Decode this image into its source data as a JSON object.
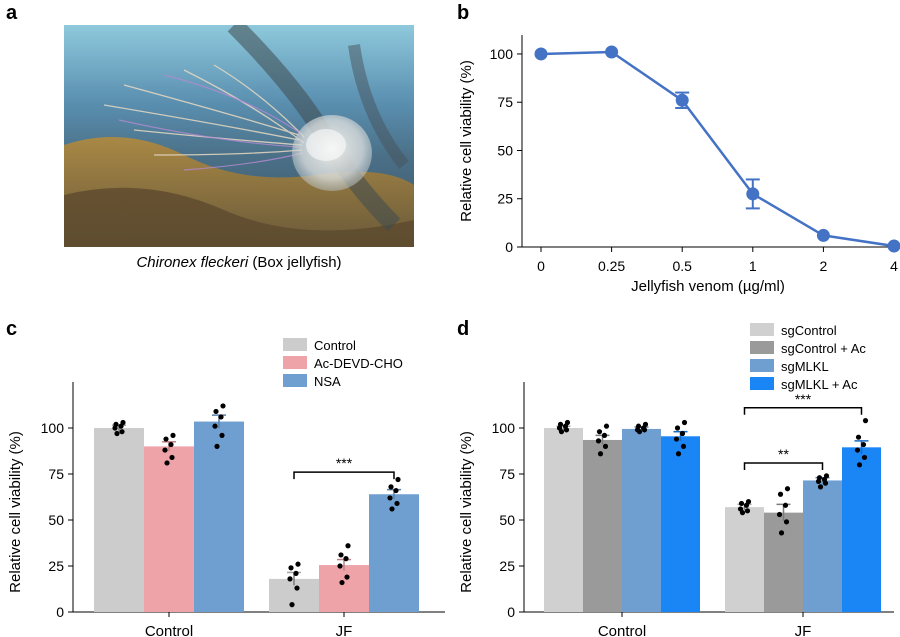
{
  "panel_labels": {
    "a": "a",
    "b": "b",
    "c": "c",
    "d": "d"
  },
  "panel_a": {
    "caption_species": "Chironex fleckeri",
    "caption_common": " (Box jellyfish)"
  },
  "colors": {
    "line_blue": "#4472c4",
    "control_gray": "#cccccc",
    "acdevd_pink": "#eda3a8",
    "nsa_blue": "#6e9fd0",
    "sgcontrol_light": "#d0d0d0",
    "sgcontrol_ac": "#9a9a9a",
    "sgmlkl": "#6e9fd0",
    "sgmlkl_ac": "#1a85f5"
  },
  "chart_data": [
    {
      "id": "b",
      "type": "line",
      "xlabel": "Jellyfish venom (µg/ml)",
      "ylabel": "Relative cell viability (%)",
      "x": [
        "0",
        "0.25",
        "0.5",
        "1",
        "2",
        "4"
      ],
      "values": [
        100,
        101,
        76,
        27.5,
        6,
        0.5
      ],
      "errors": [
        0,
        0,
        4,
        7.5,
        0,
        0
      ],
      "ylim": [
        0,
        115
      ],
      "yticks": [
        "0",
        "25",
        "50",
        "75",
        "100"
      ]
    },
    {
      "id": "c",
      "type": "bar",
      "ylabel": "Relative cell viability (%)",
      "categories": [
        "Control",
        "JF"
      ],
      "ylim": [
        0,
        125
      ],
      "yticks": [
        "0",
        "25",
        "50",
        "75",
        "100"
      ],
      "series": [
        {
          "name": "Control",
          "values": [
            100,
            18
          ],
          "errors": [
            1.5,
            3.5
          ],
          "points": [
            [
              97,
              98,
              100,
              101,
              102,
              103
            ],
            [
              4,
              13,
              18,
              21,
              24,
              26
            ]
          ]
        },
        {
          "name": "Ac-DEVD-CHO",
          "values": [
            90,
            25.5
          ],
          "errors": [
            2.5,
            3
          ],
          "points": [
            [
              81,
              84,
              88,
              91,
              94,
              96
            ],
            [
              16,
              19,
              25,
              29,
              31,
              36
            ]
          ]
        },
        {
          "name": "NSA",
          "values": [
            103.5,
            64
          ],
          "errors": [
            3.5,
            2.5
          ],
          "points": [
            [
              90,
              96,
              101,
              106,
              109,
              112
            ],
            [
              56,
              59,
              62,
              66,
              68,
              72
            ]
          ]
        }
      ],
      "significance": {
        "label": "***",
        "from_series": 0,
        "to_series": 2,
        "category": 1,
        "y": 76
      }
    },
    {
      "id": "d",
      "type": "bar",
      "ylabel": "Relative cell viability (%)",
      "categories": [
        "Control",
        "JF"
      ],
      "ylim": [
        0,
        125
      ],
      "yticks": [
        "0",
        "25",
        "50",
        "75",
        "100"
      ],
      "series": [
        {
          "name": "sgControl",
          "values": [
            100,
            57
          ],
          "errors": [
            1,
            1.5
          ],
          "points": [
            [
              98,
              99,
              100,
              101,
              102,
              103
            ],
            [
              54,
              55,
              56,
              58,
              59,
              60
            ]
          ]
        },
        {
          "name": "sgControl + Ac",
          "values": [
            93.5,
            54
          ],
          "errors": [
            2.5,
            4.5
          ],
          "points": [
            [
              86,
              90,
              93,
              96,
              98,
              101
            ],
            [
              43,
              49,
              53,
              58,
              64,
              67
            ]
          ]
        },
        {
          "name": "sgMLKL",
          "values": [
            99.5,
            71.5
          ],
          "errors": [
            1,
            1.5
          ],
          "points": [
            [
              98,
              99,
              99,
              100,
              101,
              102
            ],
            [
              68,
              70,
              71,
              72,
              73,
              74
            ]
          ]
        },
        {
          "name": "sgMLKL + Ac",
          "values": [
            95.5,
            89.5
          ],
          "errors": [
            2.5,
            3.5
          ],
          "points": [
            [
              86,
              90,
              94,
              97,
              100,
              103
            ],
            [
              80,
              84,
              88,
              91,
              95,
              104
            ]
          ]
        }
      ],
      "significance": [
        {
          "label": "**",
          "from_series": 0,
          "to_series": 2,
          "category": 1,
          "y": 81
        },
        {
          "label": "***",
          "from_series": 0,
          "to_series": 3,
          "category": 1,
          "y": 111
        }
      ]
    }
  ]
}
